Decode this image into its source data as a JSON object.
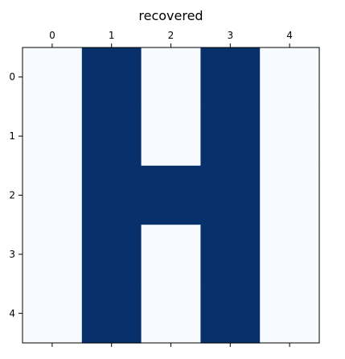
{
  "chart_data": {
    "type": "heatmap",
    "title": "recovered",
    "x_ticks": [
      "0",
      "1",
      "2",
      "3",
      "4"
    ],
    "y_ticks": [
      "0",
      "1",
      "2",
      "3",
      "4"
    ],
    "x_axis_position": "top",
    "grid": false,
    "colormap": "Blues",
    "vmin": 0,
    "vmax": 1,
    "values": [
      [
        0,
        1,
        0,
        1,
        0
      ],
      [
        0,
        1,
        0,
        1,
        0
      ],
      [
        0,
        1,
        1,
        1,
        0
      ],
      [
        0,
        1,
        0,
        1,
        0
      ],
      [
        0,
        1,
        0,
        1,
        0
      ]
    ]
  },
  "colors": {
    "low": "#f7fbff",
    "high": "#08306b",
    "axis": "#000000",
    "background": "#ffffff"
  }
}
